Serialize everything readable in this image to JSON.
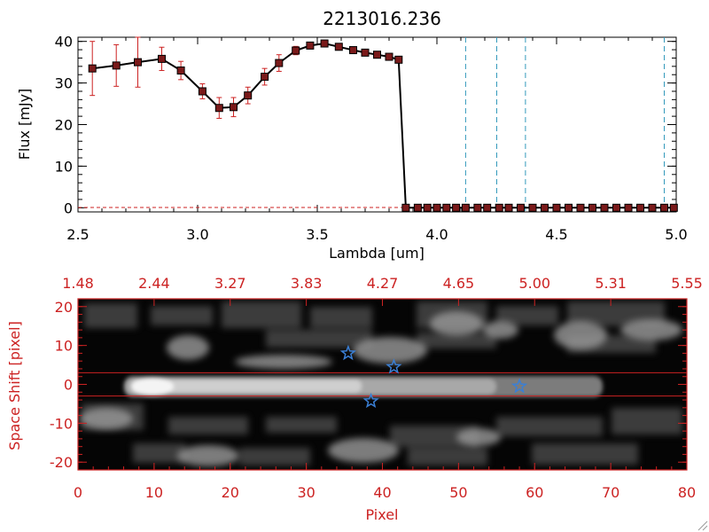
{
  "chart_data": [
    {
      "type": "line",
      "title": "2213016.236",
      "xlabel": "Lambda [um]",
      "ylabel": "Flux [mJy]",
      "xlim": [
        2.5,
        5.0
      ],
      "ylim": [
        -1,
        41
      ],
      "x_ticks": [
        "2.5",
        "3.0",
        "3.5",
        "4.0",
        "4.5",
        "5.0"
      ],
      "y_ticks": [
        "0",
        "10",
        "20",
        "30",
        "40"
      ],
      "colors": {
        "line": "#000000",
        "marker": "#7a1a1a",
        "errorbar": "#cc2222",
        "vline": "#3399bb",
        "baseline": "#cc2222"
      },
      "series": [
        {
          "x": [
            2.56,
            2.66,
            2.75,
            2.85,
            2.93,
            3.02,
            3.09,
            3.15,
            3.21,
            3.28,
            3.34,
            3.41,
            3.47,
            3.53,
            3.59,
            3.65,
            3.7,
            3.75,
            3.8,
            3.84,
            3.87,
            3.92,
            3.96,
            4.0,
            4.04,
            4.08,
            4.12,
            4.17,
            4.21,
            4.26,
            4.3,
            4.35,
            4.4,
            4.45,
            4.5,
            4.55,
            4.6,
            4.65,
            4.7,
            4.75,
            4.8,
            4.85,
            4.9,
            4.95,
            4.99
          ],
          "y": [
            33.5,
            34.2,
            35.0,
            35.8,
            33.0,
            28.0,
            24.0,
            24.2,
            27.0,
            31.5,
            34.8,
            37.8,
            39.0,
            39.5,
            38.7,
            37.9,
            37.3,
            36.8,
            36.3,
            35.6,
            0,
            0,
            0,
            0,
            0,
            0,
            0,
            0,
            0,
            0,
            0,
            0,
            0,
            0,
            0,
            0,
            0,
            0,
            0,
            0,
            0,
            0,
            0,
            0,
            0
          ],
          "yerr": [
            6.5,
            5.0,
            6.0,
            2.8,
            2.2,
            1.8,
            2.5,
            2.3,
            2.0,
            2.0,
            2.0,
            1.0,
            0.8,
            0.8,
            0.7,
            0.6,
            0.6,
            0.6,
            0.6,
            0.6,
            0,
            0,
            0,
            0,
            0,
            0,
            0,
            0,
            0,
            0,
            0,
            0,
            0,
            0,
            0,
            0,
            0,
            0,
            0,
            0,
            0,
            0,
            0,
            0,
            0
          ]
        }
      ],
      "vertical_lines": [
        4.12,
        4.25,
        4.37,
        4.95
      ]
    },
    {
      "type": "heatmap",
      "xlabel": "Pixel",
      "ylabel": "Space Shift [pixel]",
      "xlim": [
        0,
        80
      ],
      "ylim": [
        -22,
        22
      ],
      "x_ticks": [
        "0",
        "10",
        "20",
        "30",
        "40",
        "50",
        "60",
        "70",
        "80"
      ],
      "y_ticks": [
        "-20",
        "-10",
        "0",
        "10",
        "20"
      ],
      "top_axis_ticks": [
        "1.48",
        "2.44",
        "3.27",
        "3.83",
        "4.27",
        "4.65",
        "5.00",
        "5.31",
        "5.55"
      ],
      "extraction_lines": [
        3,
        -3
      ],
      "colors": {
        "axis": "#cc2222",
        "star": "#3a7fd5",
        "frame": "#cc2222"
      },
      "stars": [
        {
          "x": 35.5,
          "y": 8
        },
        {
          "x": 41.5,
          "y": 4.5
        },
        {
          "x": 58,
          "y": -0.5
        },
        {
          "x": 38.5,
          "y": -4.3
        }
      ]
    }
  ]
}
